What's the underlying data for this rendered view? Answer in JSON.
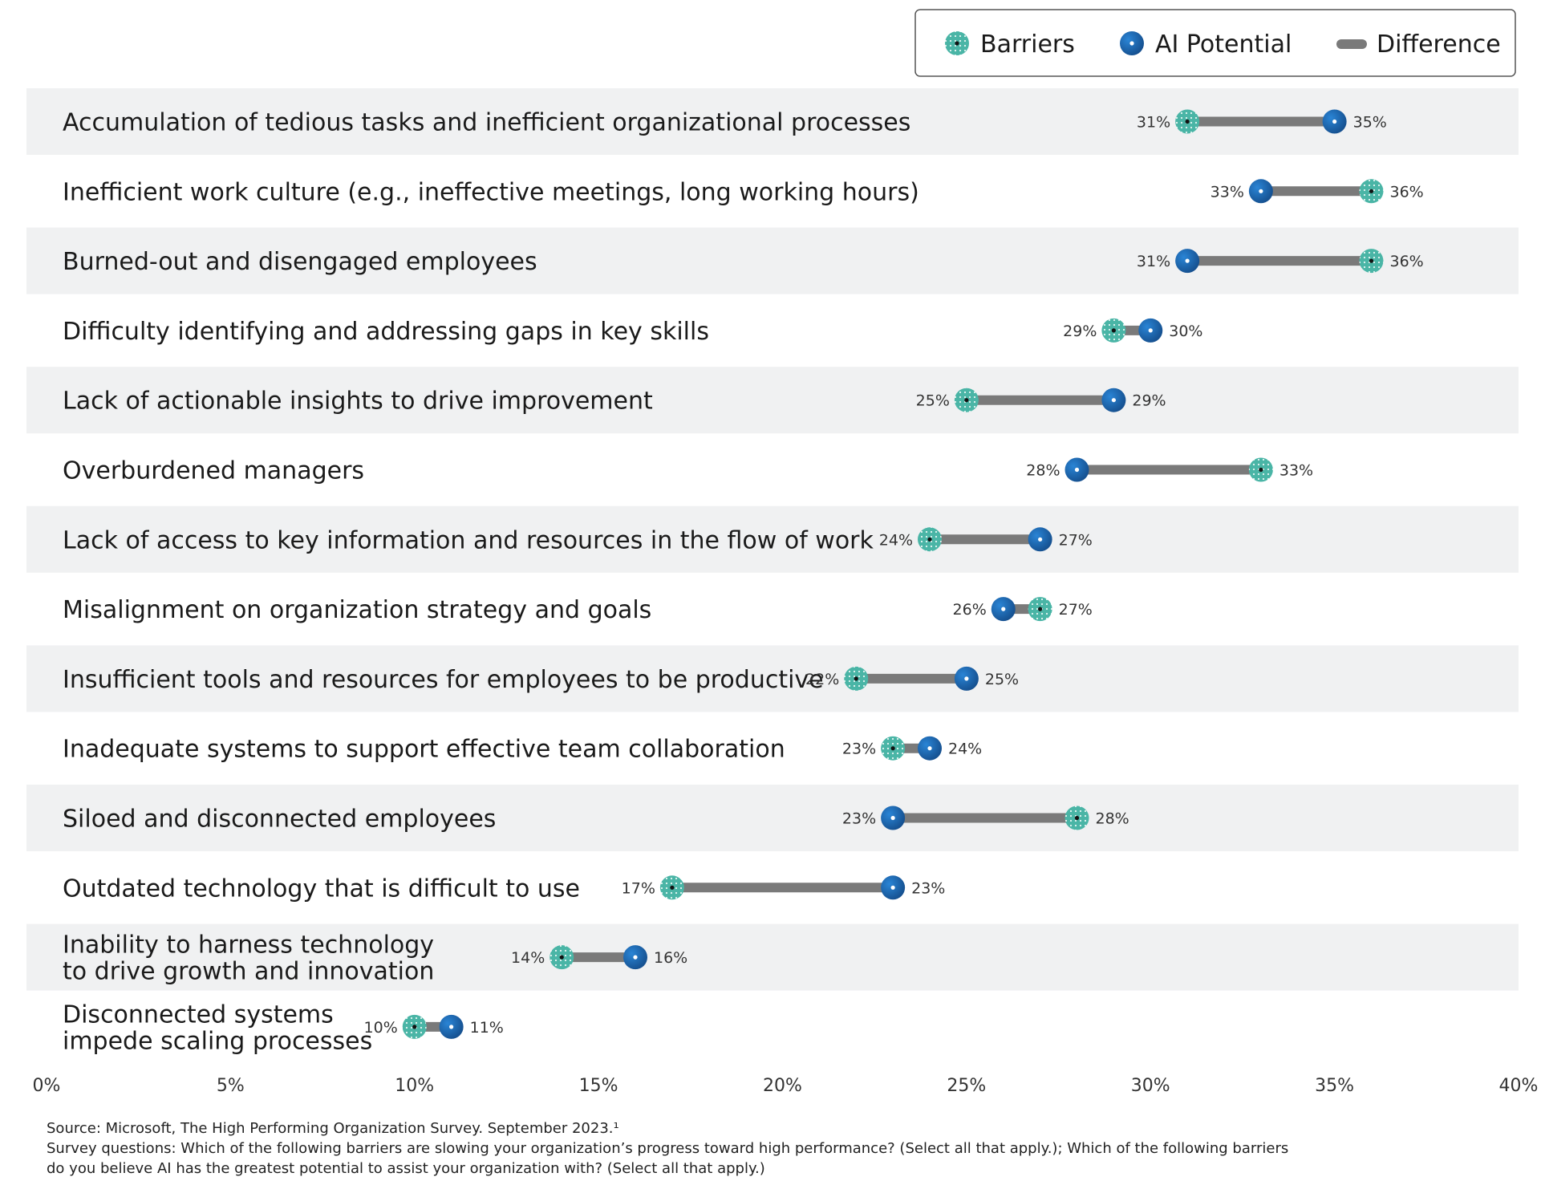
{
  "chart_data": {
    "type": "dumbbell",
    "title": "",
    "xlabel": "",
    "ylabel": "",
    "xlim": [
      0,
      40
    ],
    "x_ticks": [
      "0%",
      "5%",
      "10%",
      "15%",
      "20%",
      "25%",
      "30%",
      "35%",
      "40%"
    ],
    "grid": false,
    "legend_position": "top-right",
    "legend": {
      "barriers": "Barriers",
      "ai_potential": "AI Potential",
      "difference": "Difference"
    },
    "colors": {
      "barriers": "#4ab5a6",
      "ai_potential": "#1f6bb5",
      "difference": "#7a7a7a",
      "band": "#f0f1f2"
    },
    "categories": [
      {
        "label": [
          "Accumulation of tedious tasks and inefficient organizational processes"
        ],
        "barriers": 31,
        "barriers_label": "31%",
        "ai": 35,
        "ai_label": "35%"
      },
      {
        "label": [
          "Inefficient work culture (e.g., ineffective meetings, long working hours)"
        ],
        "barriers": 36,
        "barriers_label": "36%",
        "ai": 33,
        "ai_label": "33%"
      },
      {
        "label": [
          "Burned-out and disengaged employees"
        ],
        "barriers": 36,
        "barriers_label": "36%",
        "ai": 31,
        "ai_label": "31%"
      },
      {
        "label": [
          "Difficulty identifying and addressing gaps in key skills"
        ],
        "barriers": 29,
        "barriers_label": "29%",
        "ai": 30,
        "ai_label": "30%"
      },
      {
        "label": [
          "Lack of actionable insights to drive improvement"
        ],
        "barriers": 25,
        "barriers_label": "25%",
        "ai": 29,
        "ai_label": "29%"
      },
      {
        "label": [
          "Overburdened managers"
        ],
        "barriers": 33,
        "barriers_label": "33%",
        "ai": 28,
        "ai_label": "28%"
      },
      {
        "label": [
          "Lack of access to key information and resources in the flow of work"
        ],
        "barriers": 24,
        "barriers_label": "24%",
        "ai": 27,
        "ai_label": "27%"
      },
      {
        "label": [
          "Misalignment on organization strategy and goals"
        ],
        "barriers": 27,
        "barriers_label": "27%",
        "ai": 26,
        "ai_label": "26%"
      },
      {
        "label": [
          "Insufficient tools and resources for employees to be productive"
        ],
        "barriers": 22,
        "barriers_label": "22%",
        "ai": 25,
        "ai_label": "25%"
      },
      {
        "label": [
          "Inadequate systems to support effective team collaboration"
        ],
        "barriers": 23,
        "barriers_label": "23%",
        "ai": 24,
        "ai_label": "24%"
      },
      {
        "label": [
          "Siloed and disconnected employees"
        ],
        "barriers": 28,
        "barriers_label": "28%",
        "ai": 23,
        "ai_label": "23%"
      },
      {
        "label": [
          "Outdated technology that is difficult to use"
        ],
        "barriers": 17,
        "barriers_label": "17%",
        "ai": 23,
        "ai_label": "23%"
      },
      {
        "label": [
          "Inability to harness technology",
          "to drive growth and innovation"
        ],
        "barriers": 14,
        "barriers_label": "14%",
        "ai": 16,
        "ai_label": "16%"
      },
      {
        "label": [
          "Disconnected systems",
          "impede scaling processes"
        ],
        "barriers": 10,
        "barriers_label": "10%",
        "ai": 11,
        "ai_label": "11%"
      }
    ]
  },
  "footnotes": {
    "source": "Source: Microsoft, The High Performing Organization Survey. September 2023.¹",
    "survey_line_1": "Survey questions: Which of the following barriers are slowing your organization’s progress toward high performance? (Select all that apply.); Which of the following barriers",
    "survey_line_2": "do you believe AI has the greatest potential to assist your organization with? (Select all that apply.)"
  }
}
